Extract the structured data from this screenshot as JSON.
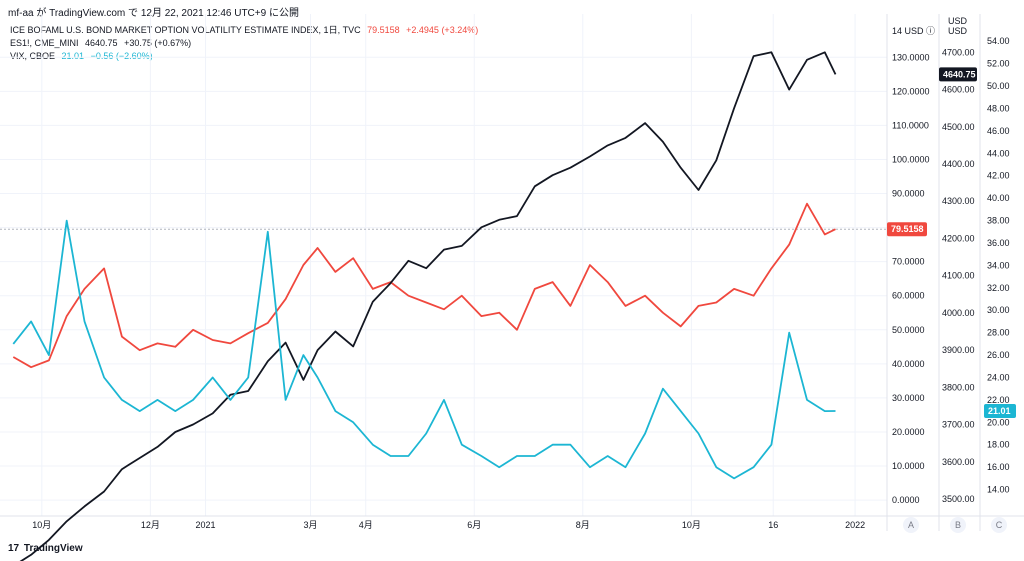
{
  "header": {
    "text": "mf-aa が TradingView.com で 12月 22, 2021 12:46 UTC+9 に公開"
  },
  "legend": [
    {
      "name": "ICE BOFAML U.S. BOND MARKET OPTION VOLATILITY ESTIMATE INDEX, 1日, TVC",
      "value": "79.5158",
      "change": "+2.4945 (+3.24%)",
      "color": "#f0483e"
    },
    {
      "name": "ES1!, CME_MINI",
      "value": "4640.75",
      "change": "+30.75 (+0.67%)",
      "color": "#131722"
    },
    {
      "name": "VIX, CBOE",
      "value": "21.01",
      "change": "−0.56 (−2.60%)",
      "color": "#1cb6d3"
    }
  ],
  "axes": {
    "a_header": "14 USD ⓘ",
    "b_header": "USD",
    "c_header": "USD",
    "bottom_labels": [
      "A",
      "B",
      "C"
    ]
  },
  "footer": {
    "brand": "TradingView",
    "logo": "17"
  },
  "colors": {
    "move": "#f0483e",
    "es": "#131722",
    "vix": "#1cb6d3",
    "grid": "#f0f3fa"
  },
  "chart_data": {
    "type": "line",
    "x_ticks": [
      "10月",
      "12月",
      "2021",
      "3月",
      "4月",
      "6月",
      "8月",
      "10月",
      "16",
      "2022"
    ],
    "axis_a": {
      "ticks": [
        "130.0000",
        "120.0000",
        "110.0000",
        "100.0000",
        "90.0000",
        "80.0000",
        "70.0000",
        "60.0000",
        "50.0000",
        "40.0000",
        "30.0000",
        "20.0000",
        "10.0000",
        "0.0000"
      ],
      "range": [
        -3.5,
        138
      ]
    },
    "axis_b": {
      "ticks": [
        "4700.00",
        "4600.00",
        "4500.00",
        "4400.00",
        "4300.00",
        "4200.00",
        "4100.00",
        "4000.00",
        "3900.00",
        "3800.00",
        "3700.00",
        "3600.00",
        "3500.00"
      ],
      "range": [
        3465,
        4760
      ]
    },
    "axis_c": {
      "ticks": [
        "54.00",
        "52.00",
        "50.00",
        "48.00",
        "46.00",
        "44.00",
        "42.00",
        "40.00",
        "38.00",
        "36.00",
        "34.00",
        "32.00",
        "30.00",
        "28.00",
        "26.00",
        "24.00",
        "22.00",
        "20.00",
        "18.00",
        "16.00",
        "14.00"
      ],
      "range": [
        12,
        55
      ]
    },
    "series": [
      {
        "name": "ICE BOFAML U.S. BOND MARKET OPTION VOLATILITY ESTIMATE INDEX, 1日, TVC",
        "axis": "a",
        "last": "79.5158",
        "x": [
          "2020-09-15",
          "2020-09-25",
          "2020-10-05",
          "2020-10-15",
          "2020-10-25",
          "2020-11-05",
          "2020-11-15",
          "2020-11-25",
          "2020-12-05",
          "2020-12-15",
          "2020-12-25",
          "2021-01-05",
          "2021-01-15",
          "2021-01-25",
          "2021-02-05",
          "2021-02-15",
          "2021-02-25",
          "2021-03-05",
          "2021-03-15",
          "2021-03-25",
          "2021-04-05",
          "2021-04-15",
          "2021-04-25",
          "2021-05-05",
          "2021-05-15",
          "2021-05-25",
          "2021-06-05",
          "2021-06-15",
          "2021-06-25",
          "2021-07-05",
          "2021-07-15",
          "2021-07-25",
          "2021-08-05",
          "2021-08-15",
          "2021-08-25",
          "2021-09-05",
          "2021-09-15",
          "2021-09-25",
          "2021-10-05",
          "2021-10-15",
          "2021-10-25",
          "2021-11-05",
          "2021-11-15",
          "2021-11-25",
          "2021-12-05",
          "2021-12-15",
          "2021-12-21"
        ],
        "values": [
          42,
          39,
          41,
          54,
          62,
          68,
          48,
          44,
          46,
          45,
          50,
          47,
          46,
          49,
          52,
          59,
          69,
          74,
          67,
          71,
          62,
          64,
          60,
          58,
          56,
          60,
          54,
          55,
          50,
          62,
          64,
          57,
          69,
          64,
          57,
          60,
          55,
          51,
          57,
          58,
          62,
          60,
          68,
          75,
          87,
          78,
          79.5158
        ]
      },
      {
        "name": "ES1!, CME_MINI",
        "axis": "b",
        "last": "4640.75",
        "x": [
          "2020-09-15",
          "2020-09-25",
          "2020-10-05",
          "2020-10-15",
          "2020-10-25",
          "2020-11-05",
          "2020-11-15",
          "2020-11-25",
          "2020-12-05",
          "2020-12-15",
          "2020-12-25",
          "2021-01-05",
          "2021-01-15",
          "2021-01-25",
          "2021-02-05",
          "2021-02-15",
          "2021-02-25",
          "2021-03-05",
          "2021-03-15",
          "2021-03-25",
          "2021-04-05",
          "2021-04-15",
          "2021-04-25",
          "2021-05-05",
          "2021-05-15",
          "2021-05-25",
          "2021-06-05",
          "2021-06-15",
          "2021-06-25",
          "2021-07-05",
          "2021-07-15",
          "2021-07-25",
          "2021-08-05",
          "2021-08-15",
          "2021-08-25",
          "2021-09-05",
          "2021-09-15",
          "2021-09-25",
          "2021-10-05",
          "2021-10-15",
          "2021-10-25",
          "2021-11-05",
          "2021-11-15",
          "2021-11-25",
          "2021-12-05",
          "2021-12-15",
          "2021-12-21"
        ],
        "values": [
          3320,
          3350,
          3390,
          3440,
          3480,
          3520,
          3580,
          3610,
          3640,
          3680,
          3700,
          3730,
          3780,
          3790,
          3870,
          3920,
          3820,
          3900,
          3950,
          3910,
          4030,
          4080,
          4140,
          4120,
          4170,
          4180,
          4230,
          4250,
          4260,
          4340,
          4370,
          4390,
          4420,
          4450,
          4470,
          4510,
          4460,
          4390,
          4330,
          4410,
          4550,
          4690,
          4700,
          4600,
          4680,
          4700,
          4640.75
        ]
      },
      {
        "name": "VIX, CBOE",
        "axis": "c",
        "last": "21.01",
        "x": [
          "2020-09-15",
          "2020-09-25",
          "2020-10-05",
          "2020-10-15",
          "2020-10-25",
          "2020-11-05",
          "2020-11-15",
          "2020-11-25",
          "2020-12-05",
          "2020-12-15",
          "2020-12-25",
          "2021-01-05",
          "2021-01-15",
          "2021-01-25",
          "2021-02-05",
          "2021-02-15",
          "2021-02-25",
          "2021-03-05",
          "2021-03-15",
          "2021-03-25",
          "2021-04-05",
          "2021-04-15",
          "2021-04-25",
          "2021-05-05",
          "2021-05-15",
          "2021-05-25",
          "2021-06-05",
          "2021-06-15",
          "2021-06-25",
          "2021-07-05",
          "2021-07-15",
          "2021-07-25",
          "2021-08-05",
          "2021-08-15",
          "2021-08-25",
          "2021-09-05",
          "2021-09-15",
          "2021-09-25",
          "2021-10-05",
          "2021-10-15",
          "2021-10-25",
          "2021-11-05",
          "2021-11-15",
          "2021-11-25",
          "2021-12-05",
          "2021-12-15",
          "2021-12-21"
        ],
        "values": [
          27,
          29,
          26,
          38,
          29,
          24,
          22,
          21,
          22,
          21,
          22,
          24,
          22,
          24,
          37,
          22,
          26,
          24,
          21,
          20,
          18,
          17,
          17,
          19,
          22,
          18,
          17,
          16,
          17,
          17,
          18,
          18,
          16,
          17,
          16,
          19,
          23,
          21,
          19,
          16,
          15,
          16,
          18,
          28,
          22,
          21,
          21.01
        ]
      }
    ]
  }
}
